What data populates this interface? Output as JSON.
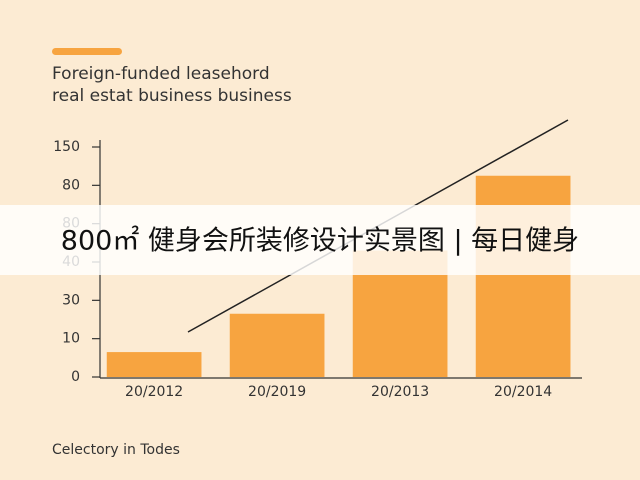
{
  "chart_data": {
    "type": "bar",
    "title": [
      "Foreign-funded leasehord",
      "real estat business business"
    ],
    "categories": [
      "20/2012",
      "20/2019",
      "20/2013",
      "20/2014"
    ],
    "values": [
      0.65,
      1.65,
      3.3,
      5.25
    ],
    "color": "#f7a440",
    "ylim": [
      0,
      6
    ],
    "yticks": [
      {
        "value": 0,
        "label": "0"
      },
      {
        "value": 1,
        "label": "10"
      },
      {
        "value": 2,
        "label": "30"
      },
      {
        "value": 3,
        "label": "40"
      },
      {
        "value": 4,
        "label": "80"
      },
      {
        "value": 5,
        "label": "80"
      },
      {
        "value": 6,
        "label": "150"
      }
    ],
    "footnote": "Celectory in Todes"
  },
  "banner": "800㎡ 健身会所装修设计实景图 | 每日健身"
}
